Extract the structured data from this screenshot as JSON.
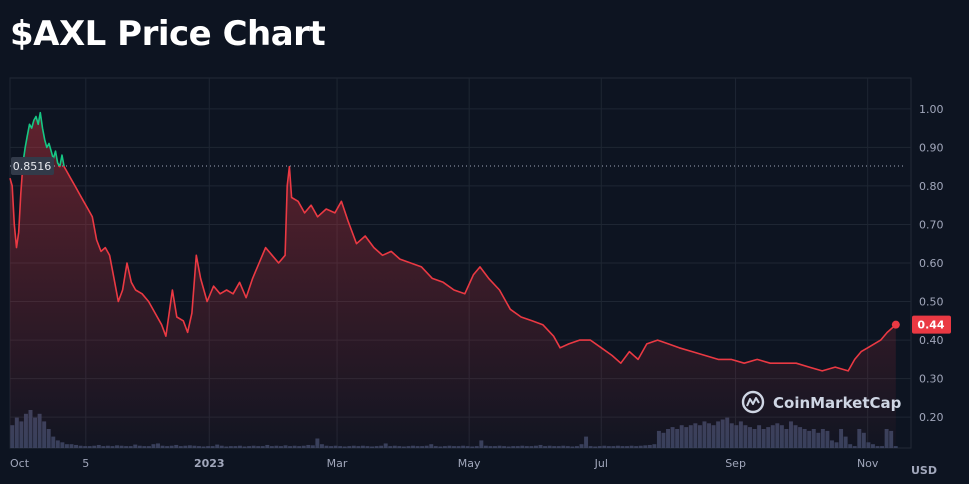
{
  "page": {
    "title": "$AXL Price Chart"
  },
  "brand": {
    "name": "CoinMarketCap"
  },
  "colors": {
    "background": "#0d1421",
    "up": "#16c784",
    "down": "#ea3943",
    "grid": "#222a36",
    "text": "#a1a7bb"
  },
  "chart_data": {
    "type": "area",
    "title": "$AXL Price Chart",
    "currency": "USD",
    "ylim": [
      0.12,
      1.08
    ],
    "yticks": [
      1.0,
      0.9,
      0.8,
      0.7,
      0.6,
      0.5,
      0.4,
      0.3,
      0.2
    ],
    "ytick_labels": [
      "1.00",
      "0.90",
      "0.80",
      "0.70",
      "0.60",
      "0.50",
      "0.40",
      "0.30",
      "0.20"
    ],
    "x_start": "2022-10-01",
    "x_end": "2023-11-15",
    "xticks": [
      {
        "date": "2022-10-01",
        "label": "Oct"
      },
      {
        "date": "2022-11-05",
        "label": "5"
      },
      {
        "date": "2023-01-01",
        "label": "2023"
      },
      {
        "date": "2023-03-01",
        "label": "Mar"
      },
      {
        "date": "2023-05-01",
        "label": "May"
      },
      {
        "date": "2023-07-01",
        "label": "Jul"
      },
      {
        "date": "2023-09-01",
        "label": "Sep"
      },
      {
        "date": "2023-11-01",
        "label": "Nov"
      }
    ],
    "reference_line": {
      "value": 0.8516,
      "label": "0.8516"
    },
    "current_price": {
      "value": 0.44,
      "label": "0.44"
    },
    "grid": true,
    "series": [
      {
        "values": [
          [
            "2022-10-01",
            0.82
          ],
          [
            "2022-10-02",
            0.8
          ],
          [
            "2022-10-03",
            0.7
          ],
          [
            "2022-10-04",
            0.64
          ],
          [
            "2022-10-05",
            0.68
          ],
          [
            "2022-10-06",
            0.78
          ],
          [
            "2022-10-07",
            0.86
          ],
          [
            "2022-10-08",
            0.9
          ],
          [
            "2022-10-09",
            0.93
          ],
          [
            "2022-10-10",
            0.96
          ],
          [
            "2022-10-11",
            0.95
          ],
          [
            "2022-10-12",
            0.97
          ],
          [
            "2022-10-13",
            0.98
          ],
          [
            "2022-10-14",
            0.96
          ],
          [
            "2022-10-15",
            0.99
          ],
          [
            "2022-10-16",
            0.95
          ],
          [
            "2022-10-17",
            0.92
          ],
          [
            "2022-10-18",
            0.9
          ],
          [
            "2022-10-19",
            0.91
          ],
          [
            "2022-10-20",
            0.89
          ],
          [
            "2022-10-21",
            0.87
          ],
          [
            "2022-10-22",
            0.89
          ],
          [
            "2022-10-23",
            0.86
          ],
          [
            "2022-10-24",
            0.85
          ],
          [
            "2022-10-25",
            0.88
          ],
          [
            "2022-10-26",
            0.85
          ],
          [
            "2022-10-27",
            0.84
          ],
          [
            "2022-10-29",
            0.82
          ],
          [
            "2022-10-31",
            0.8
          ],
          [
            "2022-11-02",
            0.78
          ],
          [
            "2022-11-04",
            0.76
          ],
          [
            "2022-11-06",
            0.74
          ],
          [
            "2022-11-08",
            0.72
          ],
          [
            "2022-11-10",
            0.66
          ],
          [
            "2022-11-12",
            0.63
          ],
          [
            "2022-11-14",
            0.64
          ],
          [
            "2022-11-16",
            0.62
          ],
          [
            "2022-11-18",
            0.56
          ],
          [
            "2022-11-20",
            0.5
          ],
          [
            "2022-11-22",
            0.53
          ],
          [
            "2022-11-24",
            0.6
          ],
          [
            "2022-11-26",
            0.55
          ],
          [
            "2022-11-28",
            0.53
          ],
          [
            "2022-12-01",
            0.52
          ],
          [
            "2022-12-04",
            0.5
          ],
          [
            "2022-12-07",
            0.47
          ],
          [
            "2022-12-10",
            0.44
          ],
          [
            "2022-12-12",
            0.41
          ],
          [
            "2022-12-15",
            0.53
          ],
          [
            "2022-12-17",
            0.46
          ],
          [
            "2022-12-20",
            0.45
          ],
          [
            "2022-12-22",
            0.42
          ],
          [
            "2022-12-24",
            0.47
          ],
          [
            "2022-12-26",
            0.62
          ],
          [
            "2022-12-28",
            0.56
          ],
          [
            "2022-12-31",
            0.5
          ],
          [
            "2023-01-03",
            0.54
          ],
          [
            "2023-01-06",
            0.52
          ],
          [
            "2023-01-09",
            0.53
          ],
          [
            "2023-01-12",
            0.52
          ],
          [
            "2023-01-15",
            0.55
          ],
          [
            "2023-01-18",
            0.51
          ],
          [
            "2023-01-21",
            0.56
          ],
          [
            "2023-01-24",
            0.6
          ],
          [
            "2023-01-27",
            0.64
          ],
          [
            "2023-01-30",
            0.62
          ],
          [
            "2023-02-02",
            0.6
          ],
          [
            "2023-02-05",
            0.62
          ],
          [
            "2023-02-06",
            0.8
          ],
          [
            "2023-02-07",
            0.85
          ],
          [
            "2023-02-08",
            0.77
          ],
          [
            "2023-02-11",
            0.76
          ],
          [
            "2023-02-14",
            0.73
          ],
          [
            "2023-02-17",
            0.75
          ],
          [
            "2023-02-20",
            0.72
          ],
          [
            "2023-02-24",
            0.74
          ],
          [
            "2023-02-28",
            0.73
          ],
          [
            "2023-03-03",
            0.76
          ],
          [
            "2023-03-06",
            0.71
          ],
          [
            "2023-03-10",
            0.65
          ],
          [
            "2023-03-14",
            0.67
          ],
          [
            "2023-03-18",
            0.64
          ],
          [
            "2023-03-22",
            0.62
          ],
          [
            "2023-03-26",
            0.63
          ],
          [
            "2023-03-30",
            0.61
          ],
          [
            "2023-04-04",
            0.6
          ],
          [
            "2023-04-09",
            0.59
          ],
          [
            "2023-04-14",
            0.56
          ],
          [
            "2023-04-19",
            0.55
          ],
          [
            "2023-04-24",
            0.53
          ],
          [
            "2023-04-29",
            0.52
          ],
          [
            "2023-05-03",
            0.57
          ],
          [
            "2023-05-06",
            0.59
          ],
          [
            "2023-05-10",
            0.56
          ],
          [
            "2023-05-15",
            0.53
          ],
          [
            "2023-05-20",
            0.48
          ],
          [
            "2023-05-25",
            0.46
          ],
          [
            "2023-05-30",
            0.45
          ],
          [
            "2023-06-04",
            0.44
          ],
          [
            "2023-06-09",
            0.41
          ],
          [
            "2023-06-12",
            0.38
          ],
          [
            "2023-06-16",
            0.39
          ],
          [
            "2023-06-21",
            0.4
          ],
          [
            "2023-06-26",
            0.4
          ],
          [
            "2023-07-01",
            0.38
          ],
          [
            "2023-07-06",
            0.36
          ],
          [
            "2023-07-10",
            0.34
          ],
          [
            "2023-07-14",
            0.37
          ],
          [
            "2023-07-18",
            0.35
          ],
          [
            "2023-07-22",
            0.39
          ],
          [
            "2023-07-27",
            0.4
          ],
          [
            "2023-08-01",
            0.39
          ],
          [
            "2023-08-06",
            0.38
          ],
          [
            "2023-08-12",
            0.37
          ],
          [
            "2023-08-18",
            0.36
          ],
          [
            "2023-08-24",
            0.35
          ],
          [
            "2023-08-30",
            0.35
          ],
          [
            "2023-09-05",
            0.34
          ],
          [
            "2023-09-11",
            0.35
          ],
          [
            "2023-09-17",
            0.34
          ],
          [
            "2023-09-23",
            0.34
          ],
          [
            "2023-09-29",
            0.34
          ],
          [
            "2023-10-05",
            0.33
          ],
          [
            "2023-10-11",
            0.32
          ],
          [
            "2023-10-17",
            0.33
          ],
          [
            "2023-10-23",
            0.32
          ],
          [
            "2023-10-26",
            0.35
          ],
          [
            "2023-10-29",
            0.37
          ],
          [
            "2023-11-01",
            0.38
          ],
          [
            "2023-11-04",
            0.39
          ],
          [
            "2023-11-07",
            0.4
          ],
          [
            "2023-11-10",
            0.42
          ],
          [
            "2023-11-14",
            0.44
          ]
        ]
      }
    ],
    "volume": [
      0.6,
      0.8,
      0.7,
      0.9,
      1.0,
      0.8,
      0.9,
      0.7,
      0.5,
      0.3,
      0.2,
      0.15,
      0.1,
      0.1,
      0.08,
      0.06,
      0.05,
      0.05,
      0.06,
      0.08,
      0.05,
      0.06,
      0.05,
      0.07,
      0.06,
      0.05,
      0.05,
      0.09,
      0.06,
      0.05,
      0.05,
      0.1,
      0.12,
      0.06,
      0.05,
      0.06,
      0.08,
      0.05,
      0.06,
      0.07,
      0.06,
      0.05,
      0.04,
      0.05,
      0.05,
      0.09,
      0.06,
      0.04,
      0.05,
      0.05,
      0.06,
      0.04,
      0.05,
      0.06,
      0.05,
      0.05,
      0.08,
      0.05,
      0.06,
      0.05,
      0.07,
      0.05,
      0.06,
      0.05,
      0.06,
      0.08,
      0.07,
      0.25,
      0.1,
      0.06,
      0.05,
      0.06,
      0.05,
      0.04,
      0.05,
      0.06,
      0.05,
      0.06,
      0.05,
      0.04,
      0.05,
      0.06,
      0.12,
      0.05,
      0.06,
      0.05,
      0.04,
      0.05,
      0.06,
      0.05,
      0.05,
      0.06,
      0.1,
      0.05,
      0.04,
      0.05,
      0.06,
      0.05,
      0.05,
      0.06,
      0.05,
      0.04,
      0.05,
      0.2,
      0.06,
      0.05,
      0.05,
      0.06,
      0.05,
      0.04,
      0.05,
      0.05,
      0.06,
      0.05,
      0.05,
      0.06,
      0.08,
      0.05,
      0.06,
      0.05,
      0.05,
      0.06,
      0.05,
      0.04,
      0.05,
      0.1,
      0.3,
      0.05,
      0.04,
      0.05,
      0.06,
      0.05,
      0.05,
      0.06,
      0.05,
      0.05,
      0.06,
      0.05,
      0.06,
      0.07,
      0.08,
      0.1,
      0.45,
      0.4,
      0.5,
      0.55,
      0.5,
      0.6,
      0.55,
      0.6,
      0.65,
      0.6,
      0.7,
      0.65,
      0.6,
      0.7,
      0.75,
      0.8,
      0.65,
      0.6,
      0.7,
      0.6,
      0.55,
      0.5,
      0.6,
      0.5,
      0.55,
      0.6,
      0.65,
      0.6,
      0.5,
      0.7,
      0.6,
      0.55,
      0.5,
      0.45,
      0.5,
      0.4,
      0.5,
      0.45,
      0.2,
      0.15,
      0.5,
      0.3,
      0.1,
      0.05,
      0.5,
      0.4,
      0.15,
      0.1,
      0.05,
      0.05,
      0.5,
      0.45,
      0.05
    ]
  }
}
